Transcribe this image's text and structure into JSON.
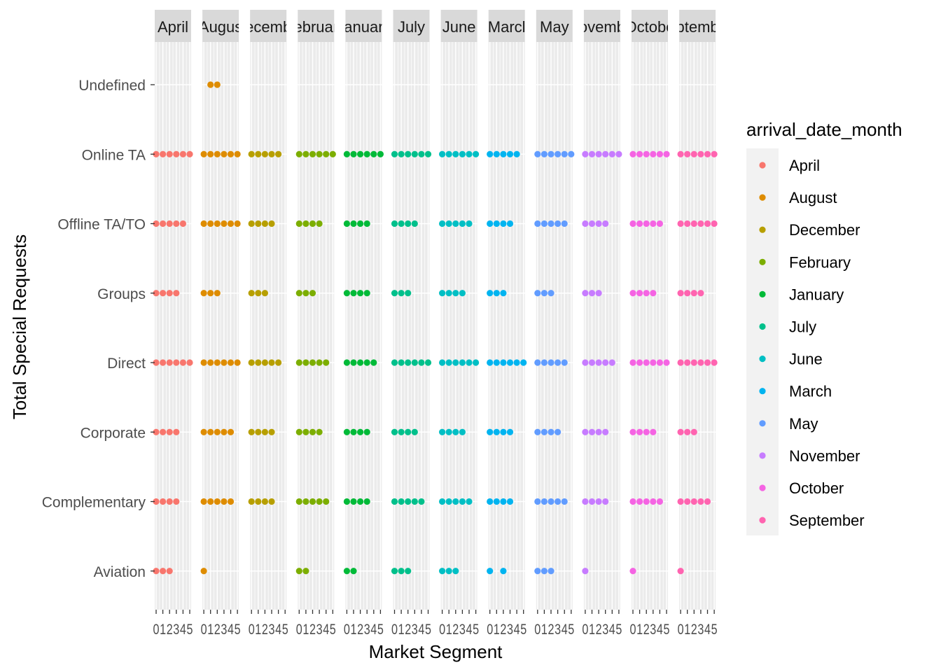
{
  "chart_data": {
    "type": "scatter",
    "xlabel": "Market Segment",
    "ylabel": "Total Special Requests",
    "x_ticks": [
      "0",
      "1",
      "2",
      "3",
      "4",
      "5"
    ],
    "xlim": [
      0,
      5
    ],
    "y_categories": [
      "Undefined",
      "Online TA",
      "Offline TA/TO",
      "Groups",
      "Direct",
      "Corporate",
      "Complementary",
      "Aviation"
    ],
    "legend": {
      "title": "arrival_date_month",
      "position": "right"
    },
    "grid": true,
    "facets": [
      {
        "name": "April",
        "strip_label": "April",
        "color": "#F8766D",
        "points": {
          "Online TA": [
            0,
            1,
            2,
            3,
            4,
            5
          ],
          "Offline TA/TO": [
            0,
            1,
            2,
            3,
            4
          ],
          "Groups": [
            0,
            1,
            2,
            3
          ],
          "Direct": [
            0,
            1,
            2,
            3,
            4,
            5
          ],
          "Corporate": [
            0,
            1,
            2,
            3
          ],
          "Complementary": [
            0,
            1,
            2,
            3
          ],
          "Aviation": [
            0,
            1,
            2
          ]
        }
      },
      {
        "name": "August",
        "strip_label": "Augus",
        "color": "#DE8C00",
        "points": {
          "Undefined": [
            1,
            2
          ],
          "Online TA": [
            0,
            1,
            2,
            3,
            4,
            5
          ],
          "Offline TA/TO": [
            0,
            1,
            2,
            3,
            4,
            5
          ],
          "Groups": [
            0,
            1,
            2
          ],
          "Direct": [
            0,
            1,
            2,
            3,
            4,
            5
          ],
          "Corporate": [
            0,
            1,
            2,
            3,
            4
          ],
          "Complementary": [
            0,
            1,
            2,
            3,
            4
          ],
          "Aviation": [
            0
          ]
        }
      },
      {
        "name": "December",
        "strip_label": "ecemb",
        "color": "#B79F00",
        "points": {
          "Online TA": [
            0,
            1,
            2,
            3,
            4
          ],
          "Offline TA/TO": [
            0,
            1,
            2,
            3
          ],
          "Groups": [
            0,
            1,
            2
          ],
          "Direct": [
            0,
            1,
            2,
            3,
            4
          ],
          "Corporate": [
            0,
            1,
            2,
            3
          ],
          "Complementary": [
            0,
            1,
            2,
            3
          ]
        }
      },
      {
        "name": "February",
        "strip_label": "ebruar",
        "color": "#7CAE00",
        "points": {
          "Online TA": [
            0,
            1,
            2,
            3,
            4,
            5
          ],
          "Offline TA/TO": [
            0,
            1,
            2,
            3
          ],
          "Groups": [
            0,
            1,
            2
          ],
          "Direct": [
            0,
            1,
            2,
            3,
            4
          ],
          "Corporate": [
            0,
            1,
            2,
            3
          ],
          "Complementary": [
            0,
            1,
            2,
            3,
            4
          ],
          "Aviation": [
            0,
            1
          ]
        }
      },
      {
        "name": "January",
        "strip_label": "anuar",
        "color": "#00BA38",
        "points": {
          "Online TA": [
            0,
            1,
            2,
            3,
            4,
            5
          ],
          "Offline TA/TO": [
            0,
            1,
            2,
            3
          ],
          "Groups": [
            0,
            1,
            2,
            3
          ],
          "Direct": [
            0,
            1,
            2,
            3,
            4
          ],
          "Corporate": [
            0,
            1,
            2,
            3
          ],
          "Complementary": [
            0,
            1,
            2,
            3
          ],
          "Aviation": [
            0,
            1
          ]
        }
      },
      {
        "name": "July",
        "strip_label": "July",
        "color": "#00C08B",
        "points": {
          "Online TA": [
            0,
            1,
            2,
            3,
            4,
            5
          ],
          "Offline TA/TO": [
            0,
            1,
            2,
            3
          ],
          "Groups": [
            0,
            1,
            2
          ],
          "Direct": [
            0,
            1,
            2,
            3,
            4,
            5
          ],
          "Corporate": [
            0,
            1,
            2,
            3
          ],
          "Complementary": [
            0,
            1,
            2,
            3,
            4
          ],
          "Aviation": [
            0,
            1,
            2
          ]
        }
      },
      {
        "name": "June",
        "strip_label": "June",
        "color": "#00BFC4",
        "points": {
          "Online TA": [
            0,
            1,
            2,
            3,
            4,
            5
          ],
          "Offline TA/TO": [
            0,
            1,
            2,
            3,
            4
          ],
          "Groups": [
            0,
            1,
            2,
            3
          ],
          "Direct": [
            0,
            1,
            2,
            3,
            4,
            5
          ],
          "Corporate": [
            0,
            1,
            2,
            3
          ],
          "Complementary": [
            0,
            1,
            2,
            3,
            4
          ],
          "Aviation": [
            0,
            1,
            2
          ]
        }
      },
      {
        "name": "March",
        "strip_label": "Marcl",
        "color": "#00B4F0",
        "points": {
          "Online TA": [
            0,
            1,
            2,
            3,
            4
          ],
          "Offline TA/TO": [
            0,
            1,
            2,
            3
          ],
          "Groups": [
            0,
            1,
            2
          ],
          "Direct": [
            0,
            1,
            2,
            3,
            4,
            5
          ],
          "Corporate": [
            0,
            1,
            2,
            3
          ],
          "Complementary": [
            0,
            1,
            2,
            3
          ],
          "Aviation": [
            0,
            2
          ]
        }
      },
      {
        "name": "May",
        "strip_label": "May",
        "color": "#619CFF",
        "points": {
          "Online TA": [
            0,
            1,
            2,
            3,
            4,
            5
          ],
          "Offline TA/TO": [
            0,
            1,
            2,
            3,
            4
          ],
          "Groups": [
            0,
            1,
            2
          ],
          "Direct": [
            0,
            1,
            2,
            3,
            4
          ],
          "Corporate": [
            0,
            1,
            2,
            3
          ],
          "Complementary": [
            0,
            1,
            2,
            3,
            4
          ],
          "Aviation": [
            0,
            1,
            2
          ]
        }
      },
      {
        "name": "November",
        "strip_label": "ovemb",
        "color": "#C77CFF",
        "points": {
          "Online TA": [
            0,
            1,
            2,
            3,
            4,
            5
          ],
          "Offline TA/TO": [
            0,
            1,
            2,
            3
          ],
          "Groups": [
            0,
            1,
            2
          ],
          "Direct": [
            0,
            1,
            2,
            3,
            4
          ],
          "Corporate": [
            0,
            1,
            2,
            3
          ],
          "Complementary": [
            0,
            1,
            2,
            3
          ],
          "Aviation": [
            0
          ]
        }
      },
      {
        "name": "October",
        "strip_label": "Octobe",
        "color": "#F564E3",
        "points": {
          "Online TA": [
            0,
            1,
            2,
            3,
            4,
            5
          ],
          "Offline TA/TO": [
            0,
            1,
            2,
            3,
            4
          ],
          "Groups": [
            0,
            1,
            2,
            3
          ],
          "Direct": [
            0,
            1,
            2,
            3,
            4,
            5
          ],
          "Corporate": [
            0,
            1,
            2,
            3
          ],
          "Complementary": [
            0,
            1,
            2,
            3,
            4
          ],
          "Aviation": [
            0
          ]
        }
      },
      {
        "name": "September",
        "strip_label": "ptemb",
        "color": "#FF64B0",
        "points": {
          "Online TA": [
            0,
            1,
            2,
            3,
            4,
            5
          ],
          "Offline TA/TO": [
            0,
            1,
            2,
            3,
            4,
            5
          ],
          "Groups": [
            0,
            1,
            2,
            3
          ],
          "Direct": [
            0,
            1,
            2,
            3,
            4,
            5
          ],
          "Corporate": [
            0,
            1,
            2
          ],
          "Complementary": [
            0,
            1,
            2,
            3,
            4
          ],
          "Aviation": [
            0
          ]
        }
      }
    ]
  }
}
